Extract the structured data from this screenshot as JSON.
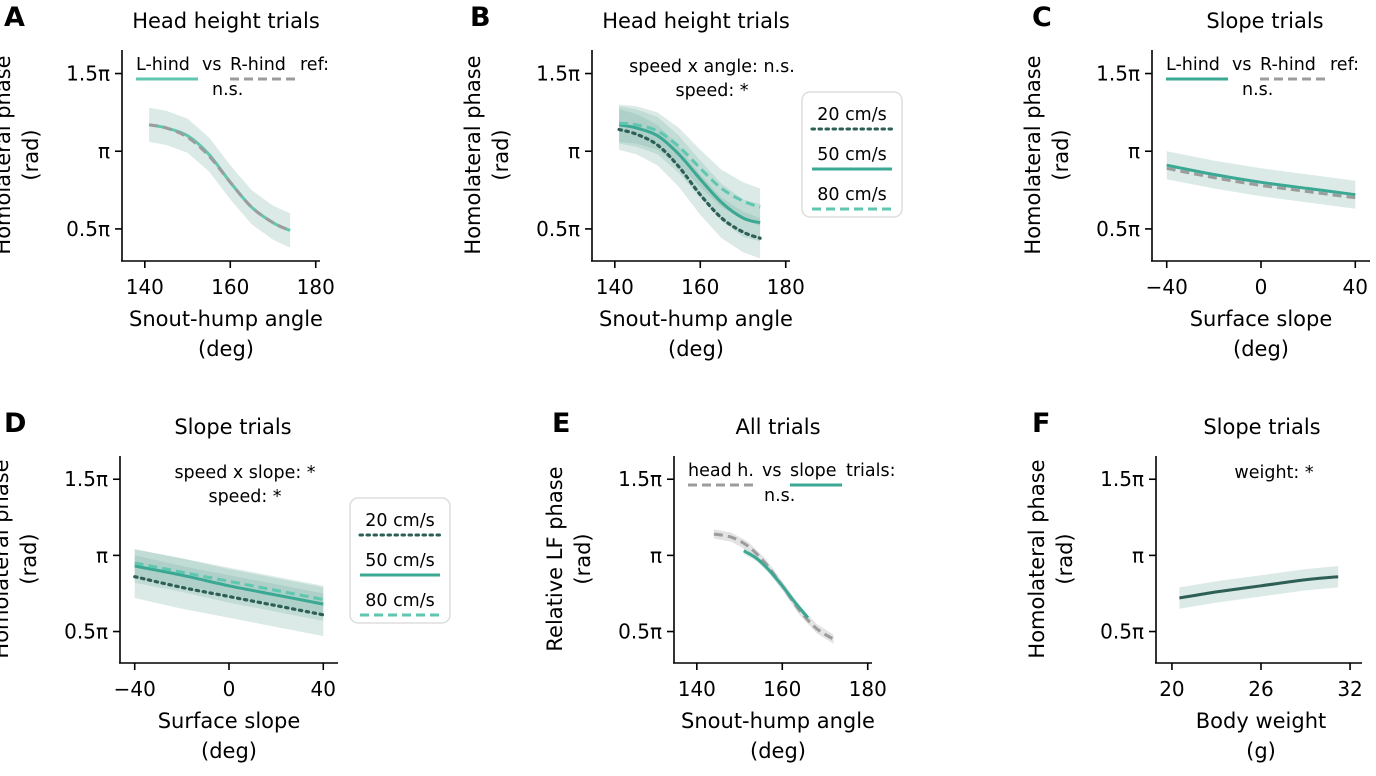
{
  "colors": {
    "dark": "#2d5f57",
    "mid": "#3aa893",
    "light": "#5fc7b0",
    "grey": "#9c9c9c",
    "band": "#7fb2a8"
  },
  "y_ticks": {
    "values": [
      0.5,
      1.0,
      1.5
    ],
    "labels": [
      "0.5π",
      "π",
      "1.5π"
    ],
    "unit": "π rad"
  },
  "chart_data": [
    {
      "id": "A",
      "letter": "A",
      "type": "line",
      "title": "Head height trials",
      "xlabel": [
        "Snout-hump angle",
        "(deg)"
      ],
      "ylabel": [
        "Homolateral phase",
        "(rad)"
      ],
      "xlim": [
        137,
        181
      ],
      "ylim": [
        0.3,
        1.6
      ],
      "xticks": [
        140,
        160,
        180
      ],
      "xtick_labels": [
        "140",
        "160",
        "180"
      ],
      "legend": {
        "kind": "inline",
        "location": "top",
        "items": [
          {
            "text": "L-hind",
            "color": "light",
            "dash": "solid",
            "underline": true
          },
          {
            "text": "vs",
            "color": "text",
            "underline": false
          },
          {
            "text": "R-hind",
            "color": "grey",
            "dash": "dashed",
            "underline": true
          },
          {
            "text": "ref:",
            "color": "text",
            "underline": false
          }
        ],
        "line2": "n.s."
      },
      "series": [
        {
          "name": "L-hind",
          "color": "light",
          "dash": "solid",
          "x": [
            141,
            145,
            150,
            155,
            160,
            165,
            170,
            174
          ],
          "y": [
            1.17,
            1.15,
            1.1,
            0.98,
            0.8,
            0.64,
            0.54,
            0.49
          ],
          "band": 0.11
        },
        {
          "name": "R-hind",
          "color": "grey",
          "dash": "dashed",
          "x": [
            141,
            145,
            150,
            155,
            160,
            165,
            170,
            174
          ],
          "y": [
            1.17,
            1.15,
            1.09,
            0.97,
            0.8,
            0.64,
            0.54,
            0.49
          ],
          "band": 0
        }
      ]
    },
    {
      "id": "B",
      "letter": "B",
      "type": "line",
      "title": "Head height trials",
      "xlabel": [
        "Snout-hump angle",
        "(deg)"
      ],
      "ylabel": [
        "Homolateral phase",
        "(rad)"
      ],
      "xlim": [
        137,
        181
      ],
      "ylim": [
        0.3,
        1.6
      ],
      "xticks": [
        140,
        160,
        180
      ],
      "xtick_labels": [
        "140",
        "160",
        "180"
      ],
      "annotation": [
        "speed x angle: n.s.",
        "speed: *"
      ],
      "legend": {
        "kind": "box",
        "items": [
          {
            "text": "20 cm/s",
            "color": "dark",
            "dash": "dotted"
          },
          {
            "text": "50 cm/s",
            "color": "mid",
            "dash": "solid"
          },
          {
            "text": "80 cm/s",
            "color": "light",
            "dash": "dashed"
          }
        ]
      },
      "series": [
        {
          "name": "20 cm/s",
          "color": "dark",
          "dash": "dotted",
          "x": [
            141,
            145,
            150,
            155,
            160,
            165,
            170,
            174
          ],
          "y": [
            1.14,
            1.11,
            1.04,
            0.9,
            0.72,
            0.57,
            0.48,
            0.44
          ],
          "band": 0.13
        },
        {
          "name": "50 cm/s",
          "color": "mid",
          "dash": "solid",
          "x": [
            141,
            145,
            150,
            155,
            160,
            165,
            170,
            174
          ],
          "y": [
            1.17,
            1.15,
            1.1,
            0.98,
            0.82,
            0.67,
            0.57,
            0.54
          ],
          "band": 0.12
        },
        {
          "name": "80 cm/s",
          "color": "light",
          "dash": "dashed",
          "x": [
            141,
            145,
            150,
            155,
            160,
            165,
            170,
            174
          ],
          "y": [
            1.18,
            1.17,
            1.13,
            1.03,
            0.89,
            0.76,
            0.68,
            0.64
          ],
          "band": 0.12
        }
      ]
    },
    {
      "id": "C",
      "letter": "C",
      "type": "line",
      "title": "Slope trials",
      "xlabel": [
        "Surface slope",
        "(deg)"
      ],
      "ylabel": [
        "Homolateral phase",
        "(rad)"
      ],
      "xlim": [
        -42,
        42
      ],
      "ylim": [
        0.3,
        1.6
      ],
      "xticks": [
        -40,
        0,
        40
      ],
      "xtick_labels": [
        "−40",
        "0",
        "40"
      ],
      "legend": {
        "kind": "inline",
        "location": "top",
        "items": [
          {
            "text": "L-hind",
            "color": "mid",
            "dash": "solid",
            "underline": true
          },
          {
            "text": "vs",
            "color": "text",
            "underline": false
          },
          {
            "text": "R-hind",
            "color": "grey",
            "dash": "dashed",
            "underline": true
          },
          {
            "text": "ref:",
            "color": "text",
            "underline": false
          }
        ],
        "line2": "n.s."
      },
      "series": [
        {
          "name": "L-hind",
          "color": "mid",
          "dash": "solid",
          "x": [
            -40,
            -20,
            0,
            20,
            40
          ],
          "y": [
            0.91,
            0.85,
            0.8,
            0.76,
            0.72
          ],
          "band": 0.09
        },
        {
          "name": "R-hind",
          "color": "grey",
          "dash": "dashed",
          "x": [
            -40,
            -20,
            0,
            20,
            40
          ],
          "y": [
            0.89,
            0.83,
            0.78,
            0.74,
            0.7
          ],
          "band": 0
        }
      ]
    },
    {
      "id": "D",
      "letter": "D",
      "type": "line",
      "title": "Slope trials",
      "xlabel": [
        "Surface slope",
        "(deg)"
      ],
      "ylabel": [
        "Homolateral phase",
        "(rad)"
      ],
      "xlim": [
        -42,
        42
      ],
      "ylim": [
        0.3,
        1.6
      ],
      "xticks": [
        -40,
        0,
        40
      ],
      "xtick_labels": [
        "−40",
        "0",
        "40"
      ],
      "annotation": [
        "speed x slope: *",
        "speed: *"
      ],
      "legend": {
        "kind": "box",
        "items": [
          {
            "text": "20 cm/s",
            "color": "dark",
            "dash": "dotted"
          },
          {
            "text": "50 cm/s",
            "color": "mid",
            "dash": "solid"
          },
          {
            "text": "80 cm/s",
            "color": "light",
            "dash": "dashed"
          }
        ]
      },
      "series": [
        {
          "name": "20 cm/s",
          "color": "dark",
          "dash": "dotted",
          "x": [
            -40,
            -20,
            0,
            20,
            40
          ],
          "y": [
            0.86,
            0.79,
            0.73,
            0.67,
            0.61
          ],
          "band": 0.14
        },
        {
          "name": "50 cm/s",
          "color": "mid",
          "dash": "solid",
          "x": [
            -40,
            -20,
            0,
            20,
            40
          ],
          "y": [
            0.93,
            0.87,
            0.8,
            0.74,
            0.68
          ],
          "band": 0.11
        },
        {
          "name": "80 cm/s",
          "color": "light",
          "dash": "dashed",
          "x": [
            -40,
            -20,
            0,
            20,
            40
          ],
          "y": [
            0.95,
            0.89,
            0.83,
            0.77,
            0.71
          ],
          "band": 0.09
        }
      ]
    },
    {
      "id": "E",
      "letter": "E",
      "type": "line",
      "title": "All trials",
      "xlabel": [
        "Snout-hump angle",
        "(deg)"
      ],
      "ylabel": [
        "Relative LF phase",
        "(rad)"
      ],
      "xlim": [
        137,
        181
      ],
      "ylim": [
        0.3,
        1.6
      ],
      "xticks": [
        140,
        160,
        180
      ],
      "xtick_labels": [
        "140",
        "160",
        "180"
      ],
      "legend": {
        "kind": "inline",
        "location": "top",
        "items": [
          {
            "text": "head h.",
            "color": "grey",
            "dash": "dashed",
            "underline": true
          },
          {
            "text": "vs",
            "color": "text",
            "underline": false
          },
          {
            "text": "slope",
            "color": "mid",
            "dash": "solid",
            "underline": true
          },
          {
            "text": "trials:",
            "color": "text",
            "underline": false
          }
        ],
        "line2": "n.s."
      },
      "series": [
        {
          "name": "head h.",
          "color": "grey",
          "dash": "dashed",
          "x": [
            144,
            148,
            152,
            156,
            160,
            164,
            168,
            172
          ],
          "y": [
            1.14,
            1.12,
            1.06,
            0.95,
            0.8,
            0.64,
            0.52,
            0.45
          ],
          "band": 0.03
        },
        {
          "name": "slope",
          "color": "mid",
          "dash": "solid",
          "x": [
            151,
            154,
            157,
            160,
            163,
            166
          ],
          "y": [
            1.03,
            0.98,
            0.9,
            0.8,
            0.69,
            0.59
          ],
          "band": 0.02
        }
      ]
    },
    {
      "id": "F",
      "letter": "F",
      "type": "line",
      "title": "Slope trials",
      "xlabel": [
        "Body weight",
        "(g)"
      ],
      "ylabel": [
        "Homolateral phase",
        "(rad)"
      ],
      "xlim": [
        19.6,
        32.4
      ],
      "ylim": [
        0.3,
        1.6
      ],
      "xticks": [
        20,
        26,
        32
      ],
      "xtick_labels": [
        "20",
        "26",
        "32"
      ],
      "annotation": [
        "weight: *"
      ],
      "series": [
        {
          "name": "",
          "color": "dark",
          "dash": "solid",
          "x": [
            20.5,
            23,
            26,
            29,
            31.2
          ],
          "y": [
            0.72,
            0.76,
            0.8,
            0.84,
            0.86
          ],
          "band": 0.07
        }
      ]
    }
  ]
}
